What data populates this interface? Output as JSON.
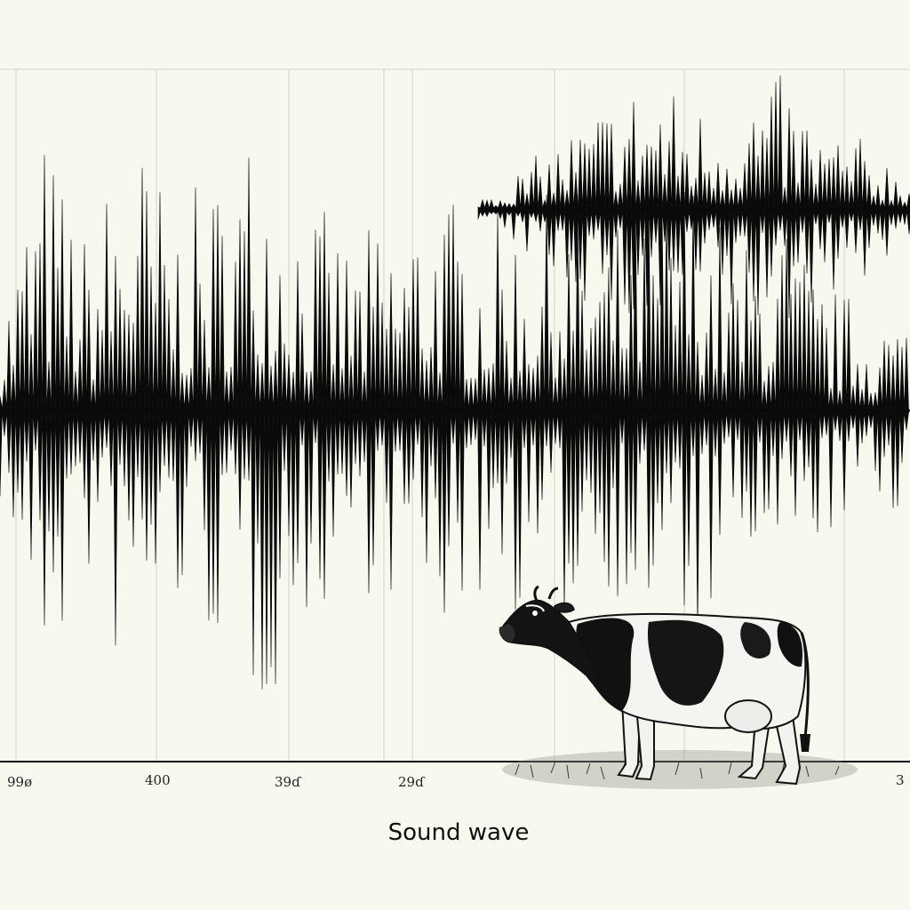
{
  "chart_data": {
    "type": "line",
    "title": "",
    "xlabel": "Sound wave",
    "ylabel": "",
    "grid": true,
    "legend": "none",
    "tick_labels": [
      "99ø",
      "400",
      "39ɗ",
      "29ɗ",
      "3"
    ],
    "colors": {
      "background": "#f7f9ee",
      "wave": "#0a0a0a",
      "grid": "#c9ccc0",
      "axis": "#111111"
    },
    "series": [
      {
        "description_role": "main waveform",
        "envelope_peaks": [
          0.3,
          0.9,
          0.55,
          0.95,
          0.65,
          0.75,
          1.0,
          0.7,
          0.55,
          0.6,
          0.75,
          0.6,
          0.65,
          0.7,
          0.55,
          0.75,
          0.8,
          0.5,
          0.65,
          0.4,
          0.35,
          0.3
        ]
      },
      {
        "description_role": "upper waveform",
        "envelope_peaks": [
          0.1,
          0.3,
          0.55,
          0.8,
          1.0,
          0.75,
          0.85,
          0.95,
          0.6,
          0.5,
          0.3
        ]
      }
    ]
  },
  "illustration": {
    "icon": "cow-icon"
  }
}
